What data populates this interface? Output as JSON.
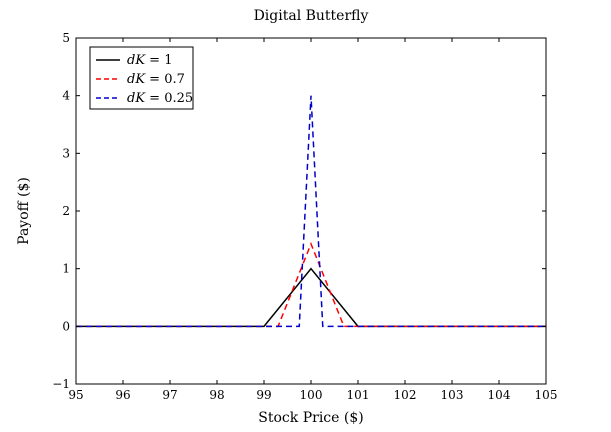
{
  "chart_data": {
    "type": "line",
    "title": "Digital Butterfly",
    "xlabel": "Stock Price ($)",
    "ylabel": "Payoff ($)",
    "xlim": [
      95,
      105
    ],
    "ylim": [
      -1,
      5
    ],
    "xticks": [
      95,
      96,
      97,
      98,
      99,
      100,
      101,
      102,
      103,
      104,
      105
    ],
    "yticks": [
      -1,
      0,
      1,
      2,
      3,
      4,
      5
    ],
    "grid": false,
    "legend": "top-left",
    "series": [
      {
        "name": "dK = 1",
        "legend_var": "dK",
        "legend_val": "= 1",
        "color": "#000000",
        "dash": "solid",
        "x": [
          95,
          99,
          100,
          101,
          105
        ],
        "y": [
          0,
          0,
          1,
          0,
          0
        ]
      },
      {
        "name": "dK = 0.7",
        "legend_var": "dK",
        "legend_val": "= 0.7",
        "color": "#ff0000",
        "dash": "dashed",
        "x": [
          95,
          99.3,
          100,
          100.7,
          105
        ],
        "y": [
          0,
          0,
          1.43,
          0,
          0
        ]
      },
      {
        "name": "dK = 0.25",
        "legend_var": "dK",
        "legend_val": "= 0.25",
        "color": "#0000cc",
        "dash": "dashed",
        "x": [
          95,
          99.75,
          100,
          100.25,
          105
        ],
        "y": [
          0,
          0,
          4,
          0,
          0
        ]
      }
    ]
  }
}
